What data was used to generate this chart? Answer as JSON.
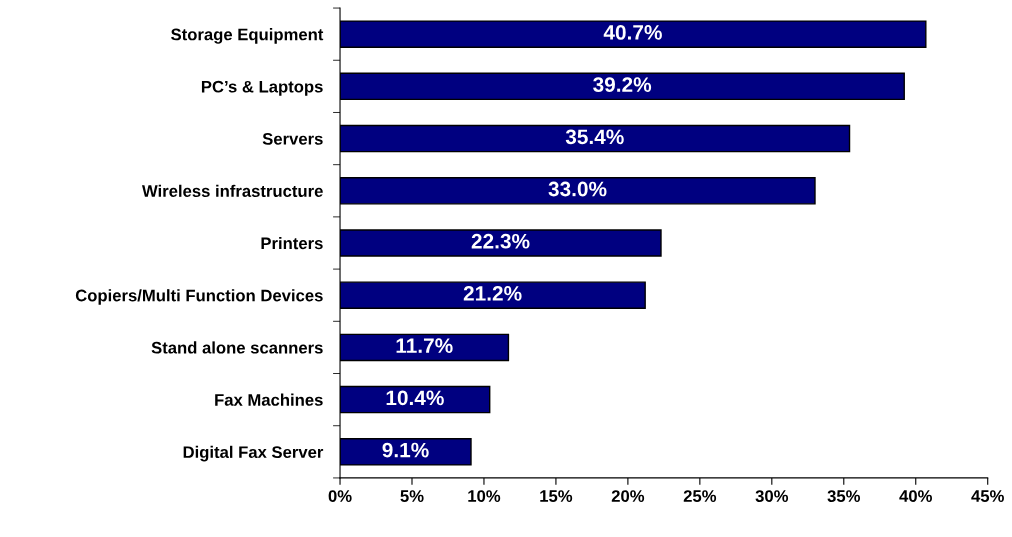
{
  "chart_data": {
    "type": "bar",
    "orientation": "horizontal",
    "categories": [
      "Storage Equipment",
      "PC’s & Laptops",
      "Servers",
      "Wireless infrastructure",
      "Printers",
      "Copiers/Multi Function Devices",
      "Stand alone scanners",
      "Fax Machines",
      "Digital Fax Server"
    ],
    "values": [
      40.7,
      39.2,
      35.4,
      33.0,
      22.3,
      21.2,
      11.7,
      10.4,
      9.1
    ],
    "value_labels": [
      "40.7%",
      "39.2%",
      "35.4%",
      "33.0%",
      "22.3%",
      "21.2%",
      "11.7%",
      "10.4%",
      "9.1%"
    ],
    "color": "#000080",
    "xlim": [
      0,
      45
    ],
    "xticks": [
      {
        "value": 0,
        "label": "0%"
      },
      {
        "value": 5,
        "label": "5%"
      },
      {
        "value": 10,
        "label": "10%"
      },
      {
        "value": 15,
        "label": "15%"
      },
      {
        "value": 20,
        "label": "20%"
      },
      {
        "value": 25,
        "label": "25%"
      },
      {
        "value": 30,
        "label": "30%"
      },
      {
        "value": 35,
        "label": "35%"
      },
      {
        "value": 40,
        "label": "40%"
      },
      {
        "value": 45,
        "label": "45%"
      }
    ],
    "grid": false,
    "legend": false
  }
}
